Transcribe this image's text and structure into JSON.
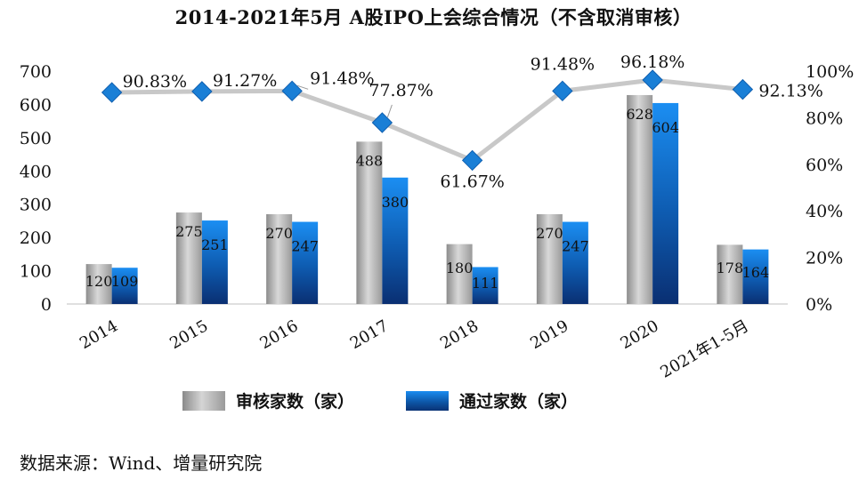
{
  "title": "2014-2021年5月 A股IPO上会综合情况（不含取消审核）",
  "source": "数据来源：Wind、增量研究院",
  "colors": {
    "gray_series": "#b5b5b5",
    "blue_series": "#1166c4",
    "line": "#c8c8c8",
    "marker": "#1a7fd6"
  },
  "chart_data": {
    "type": "bar",
    "categories": [
      "2014",
      "2015",
      "2016",
      "2017",
      "2018",
      "2019",
      "2020",
      "2021年1-5月"
    ],
    "series": [
      {
        "name": "审核家数（家）",
        "values": [
          120,
          275,
          270,
          488,
          180,
          270,
          628,
          178
        ]
      },
      {
        "name": "通过家数（家）",
        "values": [
          109,
          251,
          247,
          380,
          111,
          247,
          604,
          164
        ]
      }
    ],
    "line_series": {
      "type": "line",
      "axis": "right",
      "values": [
        90.83,
        91.27,
        91.48,
        77.87,
        61.67,
        91.48,
        96.18,
        92.13
      ],
      "labels": [
        "90.83%",
        "91.27%",
        "91.48%",
        "77.87%",
        "61.67%",
        "91.48%",
        "96.18%",
        "92.13%"
      ]
    },
    "y_left": {
      "ticks": [
        "0",
        "100",
        "200",
        "300",
        "400",
        "500",
        "600",
        "700"
      ],
      "lim": [
        0,
        700
      ]
    },
    "y_right": {
      "ticks": [
        "0%",
        "20%",
        "40%",
        "60%",
        "80%",
        "100%"
      ],
      "lim": [
        0,
        100
      ]
    },
    "legend": "bottom",
    "grid": false
  }
}
